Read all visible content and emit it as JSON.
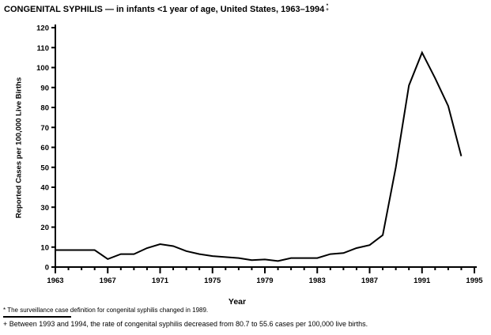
{
  "title": {
    "text": "CONGENITAL SYPHILIS — in infants <1 year of age, United States, 1963–1994",
    "marker_top": "*",
    "marker_bottom": "+"
  },
  "footnotes": [
    {
      "marker": "*",
      "text": "The surveillance case definition for congenital syphilis changed in 1989."
    },
    {
      "marker": "+",
      "text": "Between 1993 and 1994, the rate of congenital syphilis decreased from 80.7 to 55.6 cases per 100,000 live births."
    }
  ],
  "chart_data": {
    "type": "line",
    "title": "CONGENITAL SYPHILIS — in infants <1 year of age, United States, 1963–1994",
    "xlabel": "Year",
    "ylabel": "Reported Cases per 100,000 Live Births",
    "x": [
      1963,
      1964,
      1965,
      1966,
      1967,
      1968,
      1969,
      1970,
      1971,
      1972,
      1973,
      1974,
      1975,
      1976,
      1977,
      1978,
      1979,
      1980,
      1981,
      1982,
      1983,
      1984,
      1985,
      1986,
      1987,
      1988,
      1989,
      1990,
      1991,
      1992,
      1993,
      1994
    ],
    "values": [
      8.5,
      8.5,
      8.5,
      8.5,
      4.0,
      6.5,
      6.5,
      9.5,
      11.5,
      10.5,
      8.0,
      6.5,
      5.5,
      5.0,
      4.5,
      3.5,
      3.8,
      3.0,
      4.5,
      4.5,
      4.5,
      6.5,
      7.0,
      9.5,
      11.0,
      16.0,
      50.0,
      91.0,
      107.5,
      94.7,
      80.7,
      55.6
    ],
    "xlim": [
      1963,
      1995
    ],
    "ylim": [
      0,
      120
    ],
    "x_major_ticks": [
      1963,
      1967,
      1971,
      1975,
      1979,
      1983,
      1987,
      1991,
      1995
    ],
    "y_ticks": [
      0,
      10,
      20,
      30,
      40,
      50,
      60,
      70,
      80,
      90,
      100,
      110,
      120
    ],
    "grid": false,
    "legend": "none",
    "line_color": "#000000",
    "background_color": "#ffffff"
  }
}
